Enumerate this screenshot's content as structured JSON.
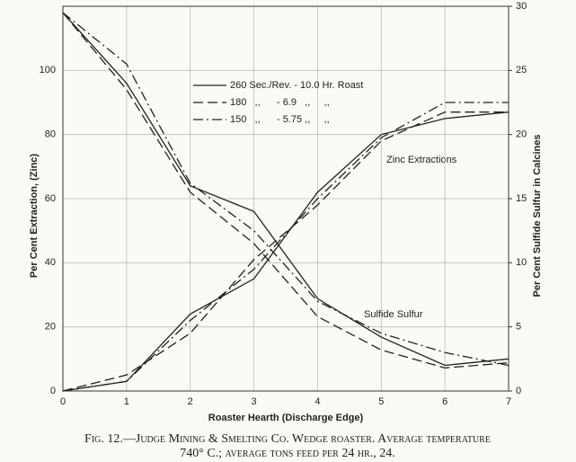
{
  "chart_data": {
    "type": "line",
    "x_label": "Roaster Hearth (Discharge Edge)",
    "y_label": "Per Cent Extraction, (Zinc)",
    "y2_label": "Per Cent Sulfide Sulfur in Calcines",
    "x": [
      0,
      1,
      2,
      3,
      4,
      5,
      6,
      7
    ],
    "xlim": [
      0,
      7
    ],
    "xticks": [
      0,
      1,
      2,
      3,
      4,
      5,
      6,
      7
    ],
    "ylim": [
      0,
      120
    ],
    "yticks": [
      0,
      20,
      40,
      60,
      80,
      100
    ],
    "y2lim": [
      0,
      30
    ],
    "y2ticks": [
      0,
      5,
      10,
      15,
      20,
      25,
      30
    ],
    "grid": true,
    "color": "#222222",
    "series": [
      {
        "name": "260 Sec./Rev. - 10.0 Hr. Roast",
        "dash": "solid",
        "values": [
          0,
          3,
          24,
          35,
          62,
          80,
          85,
          87
        ],
        "y2_values": [
          29.5,
          24,
          16,
          14,
          7.2,
          4.2,
          2,
          2.5
        ]
      },
      {
        "name": "180   ,,      - 6.9   ,,     ,,",
        "dash": "dashed",
        "values": [
          0,
          5,
          18,
          41,
          58,
          78,
          87,
          87
        ],
        "y2_values": [
          29.5,
          23.5,
          15.5,
          11.5,
          5.8,
          3.2,
          1.8,
          2.2
        ]
      },
      {
        "name": "150   ,,      - 5.75 ,,     ,,",
        "dash": "dashdot",
        "values": [
          0,
          3,
          22,
          38,
          60,
          79,
          90,
          90
        ],
        "y2_values": [
          29.5,
          25.5,
          16.2,
          12.5,
          7,
          4.5,
          3,
          2
        ]
      }
    ],
    "annotations": [
      "Zinc Extractions",
      "Sulfide Sulfur"
    ],
    "caption": [
      "Fig. 12.—Judge Mining & Smelting Co. Wedge roaster.   Average temperature",
      "740° C.; average tons feed per 24 hr., 24."
    ]
  }
}
